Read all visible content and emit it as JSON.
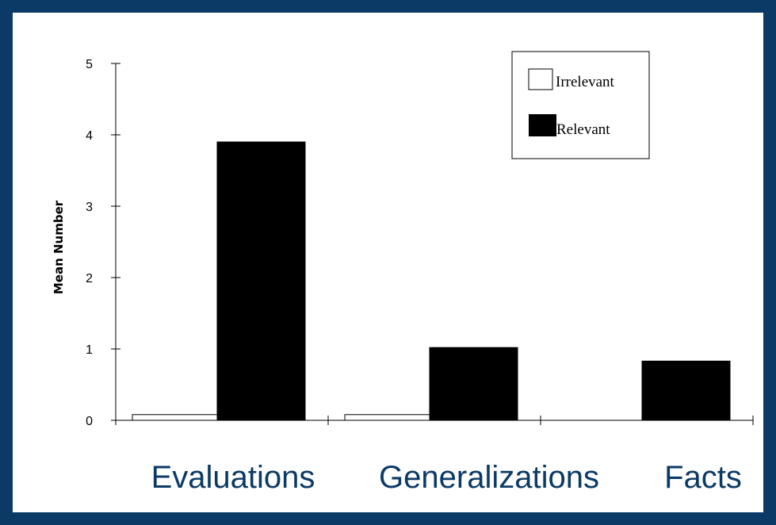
{
  "chart_data": {
    "type": "bar",
    "categories": [
      "Evaluations",
      "Generalizations",
      "Facts"
    ],
    "series": [
      {
        "name": "Irrelevant",
        "values": [
          0.08,
          0.08,
          0
        ],
        "fill": "#ffffff"
      },
      {
        "name": "Relevant",
        "values": [
          3.9,
          1.02,
          0.83
        ],
        "fill": "#000000"
      }
    ],
    "ylabel": "Mean Number",
    "ylim": [
      0,
      5
    ],
    "yticks": [
      "0",
      "1",
      "2",
      "3",
      "4",
      "5"
    ],
    "legend_position": "top-right",
    "grid": false
  },
  "colors": {
    "frame": "#0b3a66",
    "category_text": "#0b3a66"
  }
}
